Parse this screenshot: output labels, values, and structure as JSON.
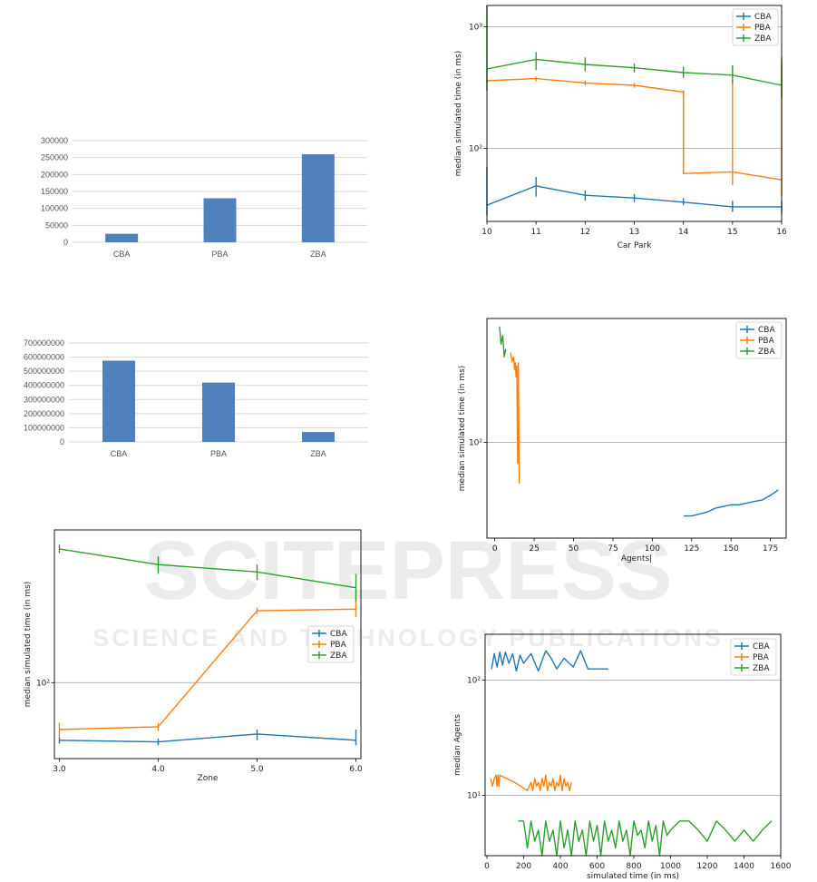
{
  "watermark": {
    "title": "SCITEPRESS",
    "subtitle": "SCIENCE AND TECHNOLOGY PUBLICATIONS"
  },
  "colors": {
    "CBA": "#1f77b4",
    "PBA": "#ff7f0e",
    "ZBA": "#2ca02c",
    "bar": "#4f81bd"
  },
  "chart_data": [
    {
      "id": "bar1",
      "type": "bar",
      "categories": [
        "CBA",
        "PBA",
        "ZBA"
      ],
      "values": [
        25000,
        130000,
        260000
      ],
      "ylim": [
        0,
        300000
      ],
      "yticks": [
        0,
        50000,
        100000,
        150000,
        200000,
        250000,
        300000
      ],
      "yticklabels": [
        "0",
        "50000",
        "100000",
        "150000",
        "200000",
        "250000",
        "300000"
      ],
      "grid": true
    },
    {
      "id": "bar2",
      "type": "bar",
      "categories": [
        "CBA",
        "PBA",
        "ZBA"
      ],
      "values": [
        575000000,
        420000000,
        70000000
      ],
      "ylim": [
        0,
        700000000
      ],
      "yticks": [
        0,
        100000000,
        200000000,
        300000000,
        400000000,
        500000000,
        600000000,
        700000000
      ],
      "yticklabels": [
        "0",
        "100000000",
        "200000000",
        "300000000",
        "400000000",
        "500000000",
        "600000000",
        "700000000"
      ],
      "grid": true
    },
    {
      "id": "carpark",
      "type": "line",
      "xlabel": "Car Park",
      "ylabel": "median simulated time (in ms)",
      "xlim": [
        10,
        16
      ],
      "ylim": [
        25,
        1500
      ],
      "yscale": "log",
      "xticks": [
        10,
        11,
        12,
        13,
        14,
        15,
        16
      ],
      "yticks": [
        100,
        1000
      ],
      "yticklabels": [
        "10²",
        "10³"
      ],
      "grid": "y",
      "legend": "top-right",
      "series": [
        {
          "name": "CBA",
          "x": [
            10,
            11,
            12,
            13,
            14,
            15,
            16
          ],
          "y": [
            34,
            49,
            41,
            39,
            36,
            33,
            33
          ],
          "err": [
            [
              28,
              70
            ],
            [
              40,
              58
            ],
            [
              37,
              45
            ],
            [
              36,
              42
            ],
            [
              34,
              39
            ],
            [
              30,
              37
            ],
            [
              29,
              37
            ]
          ]
        },
        {
          "name": "PBA",
          "x": [
            10,
            11,
            12,
            13,
            14,
            14,
            15,
            15,
            16,
            16
          ],
          "y": [
            360,
            375,
            345,
            330,
            290,
            62,
            64,
            64,
            55,
            55
          ],
          "err": [
            [
              350,
              370
            ],
            [
              355,
              390
            ],
            [
              330,
              360
            ],
            [
              315,
              345
            ],
            [
              62,
              300
            ],
            null,
            [
              50,
              480
            ],
            null,
            [
              40,
              500
            ],
            null
          ]
        },
        {
          "name": "ZBA",
          "x": [
            10,
            11,
            12,
            13,
            14,
            15,
            16
          ],
          "y": [
            450,
            540,
            490,
            460,
            420,
            400,
            330
          ],
          "err": [
            [
              300,
              1500
            ],
            [
              440,
              620
            ],
            [
              430,
              560
            ],
            [
              420,
              500
            ],
            [
              380,
              470
            ],
            [
              340,
              480
            ],
            [
              260,
              560
            ]
          ]
        }
      ]
    },
    {
      "id": "agents",
      "type": "line",
      "xlabel": "Agents|",
      "ylabel": "median simulated time (in ms)",
      "xlim": [
        -5,
        185
      ],
      "ylim": [
        20,
        800
      ],
      "yscale": "log",
      "xticks": [
        0,
        25,
        50,
        75,
        100,
        125,
        150,
        175
      ],
      "yticks": [
        100
      ],
      "yticklabels": [
        "10²"
      ],
      "grid": "y",
      "legend": "top-right",
      "series": [
        {
          "name": "CBA",
          "x": [
            120,
            125,
            130,
            135,
            140,
            145,
            150,
            155,
            160,
            165,
            170,
            175,
            180
          ],
          "y": [
            29,
            29,
            30,
            31,
            33,
            34,
            35,
            35,
            36,
            37,
            38,
            41,
            45
          ]
        },
        {
          "name": "PBA",
          "x": [
            10,
            11,
            12,
            12.5,
            13,
            13.5,
            14,
            14.5,
            15,
            15.5
          ],
          "y": [
            450,
            390,
            420,
            340,
            380,
            300,
            360,
            70,
            380,
            50
          ]
        },
        {
          "name": "ZBA",
          "x": [
            3,
            4,
            5,
            6,
            7
          ],
          "y": [
            700,
            520,
            600,
            420,
            480
          ]
        }
      ]
    },
    {
      "id": "zone",
      "type": "line",
      "xlabel": "Zone",
      "ylabel": "median simulated time (in ms)",
      "xlim": [
        2.95,
        6.05
      ],
      "ylim": [
        38,
        700
      ],
      "yscale": "log",
      "xticks": [
        3.0,
        4.0,
        5.0,
        6.0
      ],
      "xticklabels": [
        "3.0",
        "4.0",
        "5.0",
        "6.0"
      ],
      "yticks": [
        100
      ],
      "yticklabels": [
        "10²"
      ],
      "grid": "y",
      "legend": "center-right",
      "series": [
        {
          "name": "CBA",
          "x": [
            3.0,
            4.0,
            5.0,
            6.0
          ],
          "y": [
            48,
            47,
            52,
            48
          ],
          "err": [
            [
              46,
              50
            ],
            [
              45,
              49
            ],
            [
              48,
              55
            ],
            [
              45,
              55
            ]
          ]
        },
        {
          "name": "PBA",
          "x": [
            3.0,
            4.0,
            5.0,
            6.0
          ],
          "y": [
            55,
            57,
            250,
            255
          ],
          "err": [
            [
              50,
              60
            ],
            [
              54,
              60
            ],
            [
              240,
              260
            ],
            [
              230,
              290
            ]
          ]
        },
        {
          "name": "ZBA",
          "x": [
            3.0,
            4.0,
            5.0,
            6.0
          ],
          "y": [
            550,
            450,
            410,
            335
          ],
          "err": [
            [
              520,
              580
            ],
            [
              400,
              500
            ],
            [
              370,
              450
            ],
            [
              280,
              400
            ]
          ]
        }
      ]
    },
    {
      "id": "simtime",
      "type": "line",
      "xlabel": "simulated time (in ms)",
      "ylabel": "median Agents",
      "xlim": [
        -10,
        1600
      ],
      "ylim": [
        3,
        250
      ],
      "yscale": "log",
      "xticks": [
        0,
        200,
        400,
        600,
        800,
        1000,
        1200,
        1400,
        1600
      ],
      "yticks": [
        10,
        100
      ],
      "yticklabels": [
        "10¹",
        "10²"
      ],
      "grid": "y",
      "legend": "top-right",
      "series": [
        {
          "name": "CBA",
          "x": [
            25,
            40,
            55,
            70,
            85,
            100,
            120,
            140,
            160,
            180,
            200,
            240,
            280,
            320,
            350,
            380,
            420,
            470,
            510,
            550,
            600,
            660
          ],
          "y": [
            125,
            170,
            130,
            175,
            135,
            175,
            140,
            170,
            120,
            165,
            140,
            170,
            120,
            180,
            155,
            125,
            155,
            130,
            180,
            125,
            125,
            125
          ]
        },
        {
          "name": "PBA",
          "x": [
            20,
            30,
            40,
            50,
            55,
            60,
            65,
            70,
            150,
            220,
            240,
            250,
            260,
            270,
            280,
            290,
            300,
            310,
            320,
            330,
            340,
            350,
            360,
            370,
            380,
            390,
            400,
            410,
            420,
            430,
            440,
            450,
            460
          ],
          "y": [
            14,
            12,
            14,
            15,
            12,
            15,
            12,
            15,
            13,
            11,
            13,
            11,
            14,
            12,
            13,
            11,
            14,
            12,
            15,
            11,
            13,
            12,
            14,
            11,
            13,
            12,
            15,
            11,
            14,
            12,
            13,
            11,
            13
          ]
        },
        {
          "name": "ZBA",
          "x": [
            170,
            200,
            220,
            240,
            260,
            280,
            300,
            320,
            340,
            360,
            380,
            400,
            420,
            440,
            460,
            480,
            500,
            520,
            540,
            560,
            580,
            600,
            620,
            640,
            660,
            680,
            700,
            720,
            740,
            760,
            780,
            800,
            820,
            840,
            860,
            880,
            900,
            920,
            940,
            960,
            980,
            1000,
            1050,
            1100,
            1150,
            1200,
            1250,
            1300,
            1350,
            1400,
            1450,
            1500,
            1550
          ],
          "y": [
            6,
            6,
            3.5,
            6,
            4,
            5,
            3,
            6,
            4,
            5,
            3,
            6,
            3.5,
            5,
            3,
            6,
            4,
            5,
            3,
            6,
            4,
            5.5,
            3,
            6,
            4,
            5,
            3.5,
            6,
            4,
            5,
            3,
            6,
            4.5,
            5,
            3.5,
            6,
            4,
            5.5,
            3,
            6,
            4.5,
            5,
            6,
            6,
            5,
            4,
            6,
            5,
            4,
            5,
            4,
            5,
            6
          ]
        }
      ]
    }
  ]
}
